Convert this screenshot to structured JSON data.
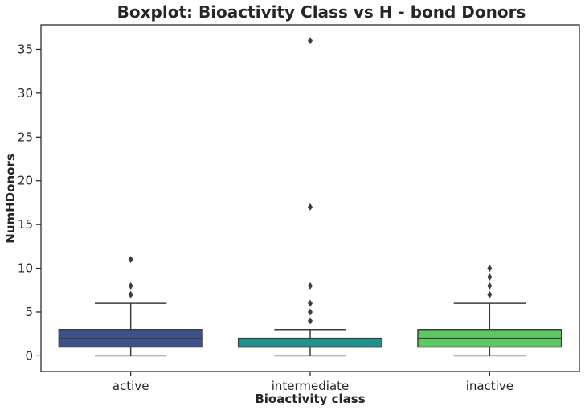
{
  "chart_data": {
    "type": "boxplot",
    "title": "Boxplot: Bioactivity Class vs H - bond Donors",
    "xlabel": "Bioactivity class",
    "ylabel": "NumHDonors",
    "ylim": [
      -1.8,
      37.8
    ],
    "yticks": [
      0,
      5,
      10,
      15,
      20,
      25,
      30,
      35
    ],
    "categories": [
      "active",
      "intermediate",
      "inactive"
    ],
    "grid": false,
    "boxes": [
      {
        "category": "active",
        "color": "#3b528b",
        "whisker_low": 0,
        "q1": 1,
        "median": 2,
        "q3": 3,
        "whisker_high": 6,
        "outliers": [
          7,
          8,
          11
        ]
      },
      {
        "category": "intermediate",
        "color": "#21918c",
        "whisker_low": 0,
        "q1": 1,
        "median": 1,
        "q3": 2,
        "whisker_high": 3,
        "outliers": [
          4,
          5,
          6,
          8,
          17,
          36
        ]
      },
      {
        "category": "inactive",
        "color": "#5ec962",
        "whisker_low": 0,
        "q1": 1,
        "median": 2,
        "q3": 3,
        "whisker_high": 6,
        "outliers": [
          7,
          8,
          9,
          10
        ]
      }
    ]
  }
}
